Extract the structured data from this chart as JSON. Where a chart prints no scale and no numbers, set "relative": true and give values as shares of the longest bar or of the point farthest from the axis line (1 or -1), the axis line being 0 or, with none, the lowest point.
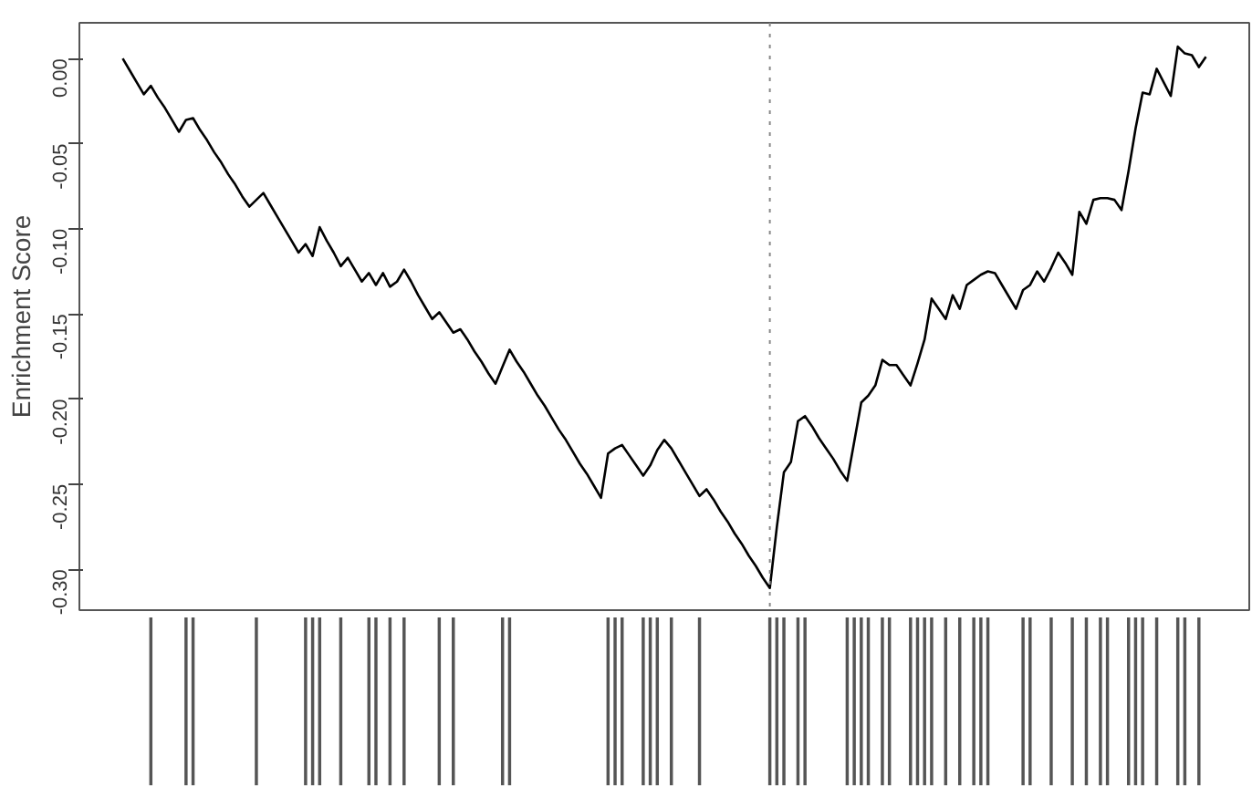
{
  "chart_data": [
    {
      "type": "line",
      "ylabel": "Enrichment Score",
      "ylim": [
        -0.324,
        0.021
      ],
      "yticks": [
        {
          "value": 0,
          "label": "0.00"
        },
        -0.05,
        {
          "value": -0.1,
          "label": "-0.10"
        },
        -0.15,
        {
          "value": -0.2,
          "label": "-0.20"
        },
        -0.25,
        {
          "value": -0.3,
          "label": "-0.30"
        }
      ],
      "tick_labels": "y",
      "grid": false,
      "marker": "none",
      "line_style": "solid",
      "categories": [
        null,
        null,
        null,
        null,
        null,
        null,
        null,
        null,
        null,
        null,
        null,
        null,
        null,
        null,
        null,
        null,
        null,
        null,
        null,
        null,
        null,
        null,
        null,
        null,
        null,
        null,
        null,
        null,
        null,
        null,
        null,
        null,
        null,
        null,
        null,
        null,
        null,
        null,
        null,
        null,
        null,
        null,
        null,
        null,
        null,
        null,
        null,
        null,
        null,
        null,
        null,
        null,
        null,
        null,
        null,
        null,
        null,
        null,
        null,
        null,
        null,
        null,
        null,
        null,
        null,
        null,
        null,
        null,
        null,
        null,
        null,
        null,
        null,
        null,
        null,
        null,
        null,
        null,
        null,
        null,
        null,
        null,
        null,
        null,
        null,
        null,
        null,
        null,
        null,
        null,
        null,
        null,
        null,
        null,
        null,
        null,
        null,
        null,
        null,
        null,
        null,
        null,
        null,
        null,
        null,
        null,
        null,
        null,
        null,
        null,
        null,
        null,
        null,
        null,
        null,
        null,
        null,
        null,
        null,
        null,
        null,
        null,
        null,
        null,
        null,
        null,
        null,
        null,
        null,
        null,
        null,
        null,
        null,
        null,
        null,
        null,
        null,
        null,
        null,
        null,
        null,
        null,
        null,
        null,
        null,
        null,
        null,
        null,
        null,
        null,
        null,
        null,
        null,
        null,
        null
      ],
      "series": [
        {
          "color": "#000000",
          "values": [
            0,
            -0.007,
            -0.014,
            -0.021,
            -0.016,
            -0.023,
            -0.029,
            -0.036,
            -0.043,
            -0.036,
            -0.035,
            -0.042,
            -0.048,
            -0.055,
            -0.061,
            -0.068,
            -0.074,
            -0.081,
            -0.087,
            -0.083,
            -0.079,
            -0.086,
            -0.093,
            -0.1,
            -0.107,
            -0.114,
            -0.109,
            -0.116,
            -0.099,
            -0.107,
            -0.114,
            -0.122,
            -0.117,
            -0.124,
            -0.131,
            -0.126,
            -0.133,
            -0.126,
            -0.134,
            -0.131,
            -0.124,
            -0.131,
            -0.139,
            -0.146,
            -0.153,
            -0.149,
            -0.155,
            -0.161,
            -0.159,
            -0.165,
            -0.172,
            -0.178,
            -0.185,
            -0.191,
            -0.181,
            -0.171,
            -0.178,
            -0.184,
            -0.191,
            -0.198,
            -0.204,
            -0.211,
            -0.218,
            -0.224,
            -0.231,
            -0.238,
            -0.244,
            -0.251,
            -0.258,
            -0.232,
            -0.229,
            -0.227,
            -0.233,
            -0.239,
            -0.245,
            -0.239,
            -0.23,
            -0.224,
            -0.229,
            -0.236,
            -0.243,
            -0.25,
            -0.257,
            -0.253,
            -0.259,
            -0.266,
            -0.272,
            -0.279,
            -0.285,
            -0.292,
            -0.298,
            -0.305,
            -0.311,
            -0.275,
            -0.243,
            -0.237,
            -0.213,
            -0.21,
            -0.216,
            -0.223,
            -0.229,
            -0.235,
            -0.242,
            -0.248,
            -0.225,
            -0.202,
            -0.198,
            -0.192,
            -0.177,
            -0.18,
            -0.18,
            -0.186,
            -0.192,
            -0.179,
            -0.165,
            -0.141,
            -0.147,
            -0.153,
            -0.139,
            -0.147,
            -0.133,
            -0.13,
            -0.127,
            -0.125,
            -0.126,
            -0.133,
            -0.14,
            -0.147,
            -0.136,
            -0.133,
            -0.125,
            -0.131,
            -0.123,
            -0.114,
            -0.12,
            -0.127,
            -0.09,
            -0.097,
            -0.083,
            -0.082,
            -0.082,
            -0.083,
            -0.089,
            -0.066,
            -0.041,
            -0.02,
            -0.021,
            -0.006,
            -0.014,
            -0.022,
            0.007,
            0.003,
            0.002,
            -0.005,
            0.001
          ]
        }
      ]
    },
    {
      "type": "bar",
      "relative": true,
      "tick_labels": false,
      "grid": false,
      "categories": [
        null,
        null,
        null,
        null,
        null,
        null,
        null,
        null,
        null,
        null,
        null,
        null,
        null,
        null,
        null,
        null,
        null,
        null,
        null,
        null,
        null,
        null,
        null,
        null,
        null,
        null,
        null,
        null,
        null,
        null,
        null,
        null,
        null,
        null,
        null,
        null,
        null,
        null,
        null,
        null,
        null,
        null,
        null,
        null,
        null,
        null,
        null,
        null,
        null,
        null,
        null,
        null,
        null,
        null,
        null,
        null,
        null,
        null,
        null,
        null,
        null,
        null,
        null,
        null,
        null,
        null,
        null,
        null,
        null,
        null,
        null,
        null,
        null,
        null,
        null,
        null,
        null,
        null,
        null,
        null,
        null,
        null,
        null,
        null,
        null,
        null,
        null,
        null,
        null,
        null,
        null,
        null,
        null,
        null,
        null,
        null,
        null,
        null,
        null,
        null,
        null,
        null,
        null,
        null,
        null,
        null,
        null,
        null,
        null,
        null,
        null,
        null,
        null,
        null,
        null,
        null,
        null,
        null,
        null,
        null,
        null,
        null,
        null,
        null,
        null,
        null,
        null,
        null,
        null,
        null,
        null,
        null,
        null,
        null,
        null,
        null,
        null,
        null,
        null,
        null,
        null,
        null,
        null,
        null,
        null,
        null,
        null,
        null,
        null,
        null,
        null,
        null,
        null,
        null,
        null
      ],
      "series": [
        {
          "color": "#555555",
          "values": [
            0,
            0,
            0,
            0,
            1,
            0,
            0,
            0,
            0,
            1,
            1,
            0,
            0,
            0,
            0,
            0,
            0,
            0,
            0,
            1,
            0,
            0,
            0,
            0,
            0,
            0,
            1,
            1,
            1,
            0,
            0,
            1,
            0,
            0,
            0,
            1,
            1,
            0,
            1,
            0,
            1,
            0,
            0,
            0,
            0,
            1,
            0,
            1,
            0,
            0,
            0,
            0,
            0,
            0,
            1,
            1,
            0,
            0,
            0,
            0,
            0,
            0,
            0,
            0,
            0,
            0,
            0,
            0,
            0,
            1,
            1,
            1,
            0,
            0,
            1,
            1,
            1,
            0,
            1,
            0,
            0,
            0,
            1,
            0,
            0,
            0,
            0,
            0,
            0,
            0,
            0,
            0,
            1,
            1,
            1,
            0,
            1,
            1,
            0,
            0,
            0,
            0,
            0,
            1,
            1,
            1,
            1,
            0,
            1,
            1,
            0,
            0,
            1,
            1,
            1,
            1,
            0,
            1,
            0,
            1,
            0,
            1,
            1,
            1,
            0,
            0,
            0,
            0,
            1,
            1,
            0,
            0,
            1,
            0,
            0,
            1,
            0,
            1,
            0,
            1,
            1,
            0,
            0,
            1,
            1,
            1,
            0,
            1,
            0,
            0,
            1,
            1,
            0,
            1,
            0
          ]
        }
      ]
    }
  ]
}
